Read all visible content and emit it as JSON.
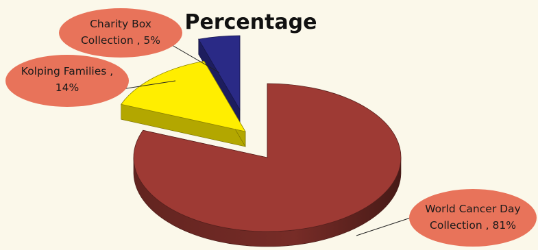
{
  "chart_data": {
    "type": "pie",
    "title": "Percentage",
    "categories": [
      "World Cancer Day Collection",
      "Kolping Families",
      "Charity Box Collection"
    ],
    "values": [
      81,
      14,
      5
    ],
    "labels": [
      [
        "World Cancer Day",
        "Collection , 81%"
      ],
      [
        "Kolping Families ,",
        "14%"
      ],
      [
        "Charity Box",
        "Collection , 5%"
      ]
    ],
    "colors": [
      "#9e3a34",
      "#ffee00",
      "#2a2a86"
    ],
    "callout_color": "#e8735a",
    "background": "#fbf8ea",
    "style": "3d-exploded"
  }
}
